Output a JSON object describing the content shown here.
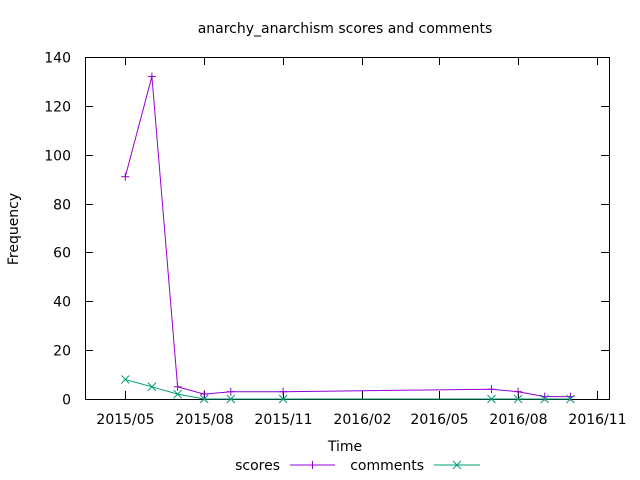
{
  "chart_data": {
    "type": "line",
    "title": "anarchy_anarchism scores and comments",
    "xlabel": "Time",
    "ylabel": "Frequency",
    "xlim": [
      "2015-03-15",
      "2016-11-15"
    ],
    "ylim": [
      0,
      140
    ],
    "x_ticks": [
      "2015-05-01",
      "2015-08-01",
      "2015-11-01",
      "2016-02-01",
      "2016-05-01",
      "2016-08-01",
      "2016-11-01"
    ],
    "x_tick_labels": [
      "2015/05",
      "2015/08",
      "2015/11",
      "2016/02",
      "2016/05",
      "2016/08",
      "2016/11"
    ],
    "y_ticks": [
      0,
      20,
      40,
      60,
      80,
      100,
      120,
      140
    ],
    "y_tick_labels": [
      "0",
      "20",
      "40",
      "60",
      "80",
      "100",
      "120",
      "140"
    ],
    "grid": false,
    "legend_position": "bottom",
    "series": [
      {
        "name": "scores",
        "color": "#9400d3",
        "marker": "plus",
        "points": [
          {
            "x": "2015-05-01",
            "y": 91
          },
          {
            "x": "2015-06-01",
            "y": 132
          },
          {
            "x": "2015-07-01",
            "y": 5
          },
          {
            "x": "2015-08-01",
            "y": 2
          },
          {
            "x": "2015-09-01",
            "y": 3
          },
          {
            "x": "2015-11-01",
            "y": 3
          },
          {
            "x": "2016-07-01",
            "y": 4
          },
          {
            "x": "2016-08-01",
            "y": 3
          },
          {
            "x": "2016-09-01",
            "y": 1
          },
          {
            "x": "2016-10-01",
            "y": 1
          }
        ]
      },
      {
        "name": "comments",
        "color": "#009e73",
        "marker": "cross",
        "points": [
          {
            "x": "2015-05-01",
            "y": 8
          },
          {
            "x": "2015-06-01",
            "y": 5
          },
          {
            "x": "2015-07-01",
            "y": 2
          },
          {
            "x": "2015-08-01",
            "y": 0
          },
          {
            "x": "2015-09-01",
            "y": 0
          },
          {
            "x": "2015-11-01",
            "y": 0
          },
          {
            "x": "2016-07-01",
            "y": 0
          },
          {
            "x": "2016-08-01",
            "y": 0
          },
          {
            "x": "2016-09-01",
            "y": 0
          },
          {
            "x": "2016-10-01",
            "y": 0
          }
        ]
      }
    ]
  }
}
